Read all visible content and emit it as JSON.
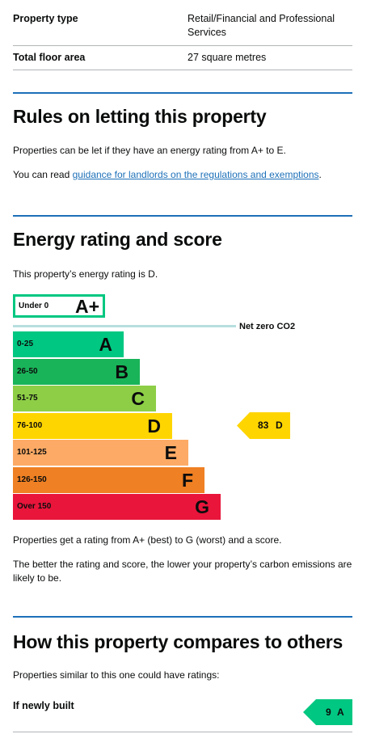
{
  "summary": {
    "rows": [
      {
        "label": "Property type",
        "value": "Retail/Financial and Professional Services"
      },
      {
        "label": "Total floor area",
        "value": "27 square metres"
      }
    ]
  },
  "letting": {
    "title": "Rules on letting this property",
    "para1": "Properties can be let if they have an energy rating from A+ to E.",
    "para2_prefix": "You can read ",
    "para2_link": "guidance for landlords on the regulations and exemptions",
    "para2_suffix": "."
  },
  "energy": {
    "title": "Energy rating and score",
    "intro": "This property’s energy rating is D.",
    "chart": {
      "aplus": {
        "range": "Under 0",
        "letter": "A+",
        "color": "#00c781"
      },
      "net_zero_label": "Net zero CO2",
      "bands": [
        {
          "range": "0-25",
          "letter": "A",
          "color": "#00c781"
        },
        {
          "range": "26-50",
          "letter": "B",
          "color": "#19b459"
        },
        {
          "range": "51-75",
          "letter": "C",
          "color": "#8dce46"
        },
        {
          "range": "76-100",
          "letter": "D",
          "color": "#ffd500"
        },
        {
          "range": "101-125",
          "letter": "E",
          "color": "#fcaa65"
        },
        {
          "range": "126-150",
          "letter": "F",
          "color": "#ef8023"
        },
        {
          "range": "Over 150",
          "letter": "G",
          "color": "#e9153b"
        }
      ],
      "current": {
        "score": "83",
        "letter": "D",
        "color": "#ffd500"
      }
    },
    "para1": "Properties get a rating from A+ (best) to G (worst) and a score.",
    "para2": "The better the rating and score, the lower your property’s carbon emissions are likely to be."
  },
  "compare": {
    "title": "How this property compares to others",
    "intro": "Properties similar to this one could have ratings:",
    "rows": [
      {
        "label": "If newly built",
        "score": "9",
        "letter": "A",
        "color": "#00c781"
      }
    ]
  }
}
